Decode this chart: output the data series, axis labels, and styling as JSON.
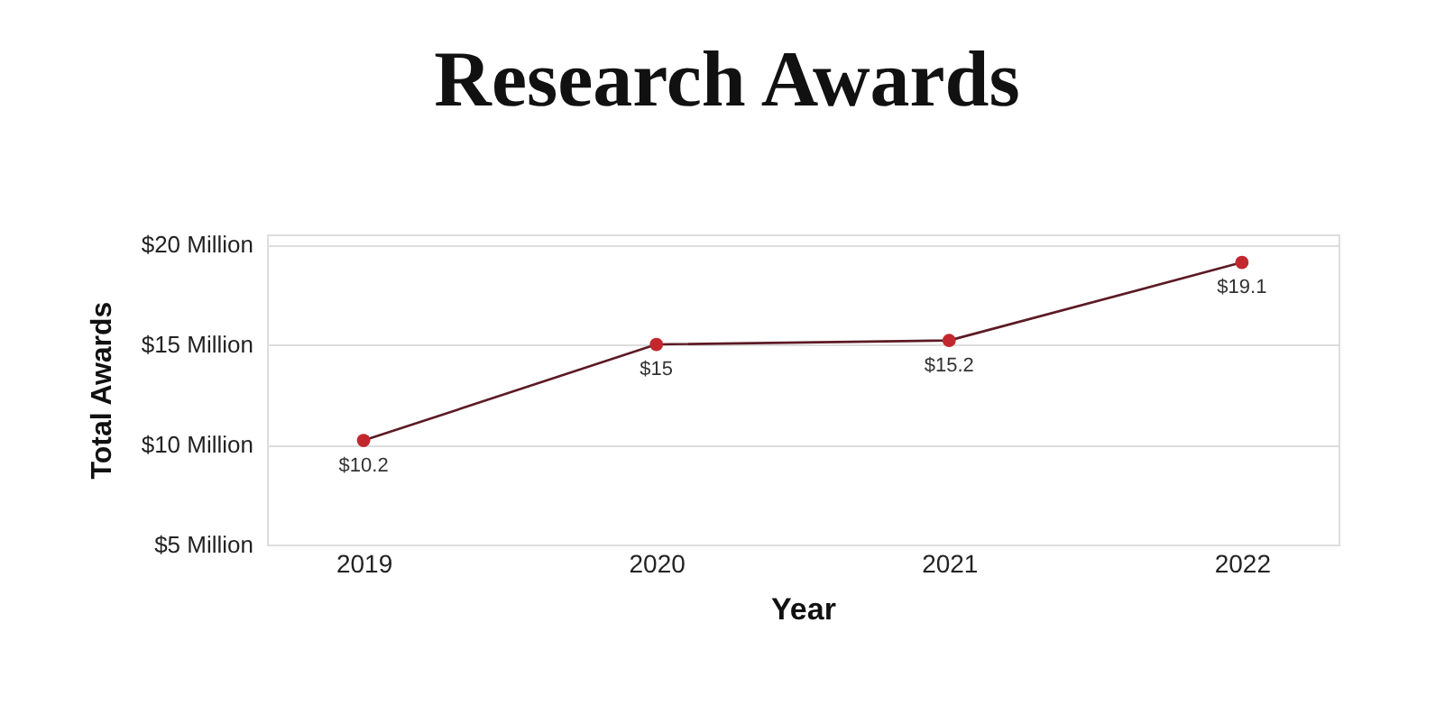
{
  "chart_data": {
    "type": "line",
    "title": "Research Awards",
    "xlabel": "Year",
    "ylabel": "Total Awards",
    "categories": [
      "2019",
      "2020",
      "2021",
      "2022"
    ],
    "series": [
      {
        "color": "#5c1a24",
        "colors": [
          "#c1272d",
          "#c1272d",
          "#c1272d",
          "#c1272d"
        ],
        "values": [
          10.2,
          15,
          15.2,
          19.1
        ],
        "value_labels": [
          "$10.2",
          "$15",
          "$15.2",
          "$19.1"
        ]
      }
    ],
    "ylim": [
      5,
      20.5
    ],
    "yticks": [
      {
        "value": 5,
        "label": "$5 Million"
      },
      {
        "value": 10,
        "label": "$10 Million"
      },
      {
        "value": 15,
        "label": "$15 Million"
      },
      {
        "value": 20,
        "label": "$20 Million"
      }
    ],
    "grid": "y",
    "marker": "circle",
    "line_style": "solid"
  }
}
